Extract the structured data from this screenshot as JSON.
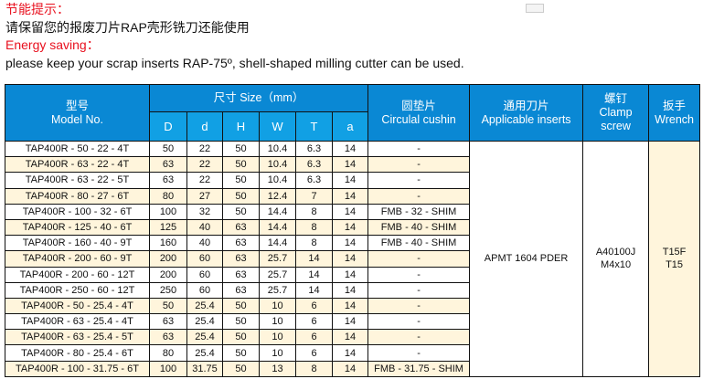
{
  "notes": {
    "cn_title": "节能提示：",
    "cn_text": "请保留您的报废刀片RAP壳形铣刀还能使用",
    "en_title": "Energy saving：",
    "en_text": "please keep your scrap inserts RAP-75º, shell-shaped milling cutter can be used."
  },
  "colors": {
    "header": "#0a88d4",
    "subheader": "#11a0e4",
    "row_alt": "#fff5dc",
    "title_red": "#e8101e"
  },
  "table": {
    "headers": {
      "model_cn": "型号",
      "model_en": "Model No.",
      "size": "尺寸 Size（mm）",
      "dims": [
        "D",
        "d",
        "H",
        "W",
        "T",
        "a"
      ],
      "cushion_cn": "圆垫片",
      "cushion_en": "Circulal cushin",
      "inserts_cn": "通用刀片",
      "inserts_en": "Applicable inserts",
      "screw_cn": "螺钉",
      "screw_en1": "Clamp",
      "screw_en2": "screw",
      "wrench_cn": "扳手",
      "wrench_en": "Wrench"
    },
    "rows": [
      {
        "model": "TAP400R - 50 - 22 - 4T",
        "D": "50",
        "d": "22",
        "H": "50",
        "W": "10.4",
        "T": "6.3",
        "a": "14",
        "cushion": "-",
        "shaded": false
      },
      {
        "model": "TAP400R - 63 - 22 - 4T",
        "D": "63",
        "d": "22",
        "H": "50",
        "W": "10.4",
        "T": "6.3",
        "a": "14",
        "cushion": "-",
        "shaded": true
      },
      {
        "model": "TAP400R - 63 - 22 - 5T",
        "D": "63",
        "d": "22",
        "H": "50",
        "W": "10.4",
        "T": "6.3",
        "a": "14",
        "cushion": "-",
        "shaded": false
      },
      {
        "model": "TAP400R - 80 - 27 - 6T",
        "D": "80",
        "d": "27",
        "H": "50",
        "W": "12.4",
        "T": "7",
        "a": "14",
        "cushion": "-",
        "shaded": true
      },
      {
        "model": "TAP400R - 100 - 32 - 6T",
        "D": "100",
        "d": "32",
        "H": "50",
        "W": "14.4",
        "T": "8",
        "a": "14",
        "cushion": "FMB - 32 - SHIM",
        "shaded": false
      },
      {
        "model": "TAP400R - 125 - 40 - 6T",
        "D": "125",
        "d": "40",
        "H": "63",
        "W": "14.4",
        "T": "8",
        "a": "14",
        "cushion": "FMB - 40 - SHIM",
        "shaded": true
      },
      {
        "model": "TAP400R - 160 - 40 - 9T",
        "D": "160",
        "d": "40",
        "H": "63",
        "W": "14.4",
        "T": "8",
        "a": "14",
        "cushion": "FMB - 40 - SHIM",
        "shaded": false
      },
      {
        "model": "TAP400R - 200 - 60 - 9T",
        "D": "200",
        "d": "60",
        "H": "63",
        "W": "25.7",
        "T": "14",
        "a": "14",
        "cushion": "-",
        "shaded": true
      },
      {
        "model": "TAP400R - 200 - 60 - 12T",
        "D": "200",
        "d": "60",
        "H": "63",
        "W": "25.7",
        "T": "14",
        "a": "14",
        "cushion": "-",
        "shaded": false
      },
      {
        "model": "TAP400R - 250 - 60 - 12T",
        "D": "250",
        "d": "60",
        "H": "63",
        "W": "25.7",
        "T": "14",
        "a": "14",
        "cushion": "-",
        "shaded": false
      },
      {
        "model": "TAP400R - 50 - 25.4 - 4T",
        "D": "50",
        "d": "25.4",
        "H": "50",
        "W": "10",
        "T": "6",
        "a": "14",
        "cushion": "-",
        "shaded": true
      },
      {
        "model": "TAP400R - 63 - 25.4 - 4T",
        "D": "63",
        "d": "25.4",
        "H": "50",
        "W": "10",
        "T": "6",
        "a": "14",
        "cushion": "-",
        "shaded": false
      },
      {
        "model": "TAP400R - 63 - 25.4 - 5T",
        "D": "63",
        "d": "25.4",
        "H": "50",
        "W": "10",
        "T": "6",
        "a": "14",
        "cushion": "-",
        "shaded": true
      },
      {
        "model": "TAP400R - 80 - 25.4 - 6T",
        "D": "80",
        "d": "25.4",
        "H": "50",
        "W": "10",
        "T": "6",
        "a": "14",
        "cushion": "-",
        "shaded": false
      },
      {
        "model": "TAP400R - 100 - 31.75 - 6T",
        "D": "100",
        "d": "31.75",
        "H": "50",
        "W": "13",
        "T": "8",
        "a": "14",
        "cushion": "FMB - 31.75 - SHIM",
        "shaded": true
      }
    ],
    "inserts": "APMT 1604 PDER",
    "screw_line1": "A40100J",
    "screw_line2": "M4x10",
    "wrench_line1": "T15F",
    "wrench_line2": "T15"
  }
}
